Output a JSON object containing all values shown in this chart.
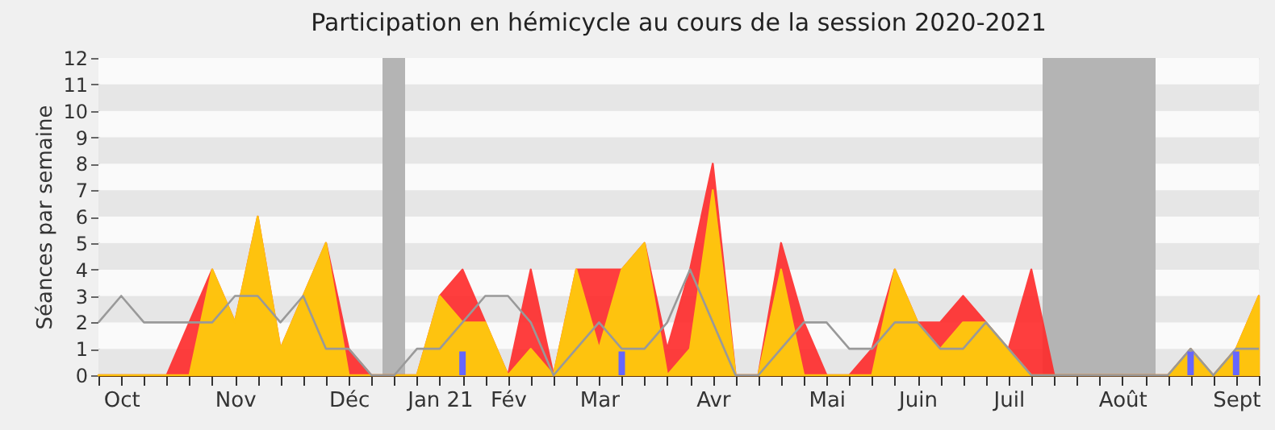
{
  "chart_data": {
    "type": "area",
    "title": "Participation en hémicycle au cours de la session 2020-2021",
    "ylabel": "Séances par semaine",
    "categories": [
      null,
      "Oct",
      null,
      null,
      null,
      null,
      "Nov",
      null,
      null,
      null,
      null,
      "Déc",
      null,
      null,
      null,
      "Jan 21",
      null,
      null,
      "Fév",
      null,
      null,
      null,
      "Mar",
      null,
      null,
      null,
      null,
      "Avr",
      null,
      null,
      null,
      null,
      "Mai",
      null,
      null,
      null,
      "Juin",
      null,
      null,
      null,
      "Juil",
      null,
      null,
      null,
      null,
      "Août",
      null,
      null,
      null,
      null,
      "Sept",
      null
    ],
    "series": [
      {
        "color": "#ff2a2a",
        "values": [
          0,
          0,
          0,
          0,
          2,
          4,
          2,
          6,
          1,
          3,
          5,
          1,
          0,
          0,
          0,
          3,
          4,
          2,
          0,
          4,
          0,
          4,
          4,
          4,
          5,
          1,
          4,
          8,
          0,
          0,
          5,
          2,
          0,
          0,
          1,
          4,
          2,
          2,
          3,
          2,
          1,
          4,
          0,
          0,
          0,
          0,
          0,
          0,
          1,
          0,
          1,
          3
        ]
      },
      {
        "color": "#ffd20a",
        "values": [
          0,
          0,
          0,
          0,
          0,
          4,
          2,
          6,
          1,
          3,
          5,
          0,
          0,
          0,
          0,
          3,
          2,
          2,
          0,
          1,
          0,
          4,
          1,
          4,
          5,
          0,
          1,
          7,
          0,
          0,
          4,
          0,
          0,
          0,
          0,
          4,
          2,
          1,
          2,
          2,
          1,
          0,
          0,
          0,
          0,
          0,
          0,
          0,
          1,
          0,
          1,
          3
        ]
      },
      {
        "type": "line",
        "color": "#999999",
        "values": [
          2,
          3,
          2,
          2,
          2,
          2,
          3,
          3,
          2,
          3,
          1,
          1,
          0,
          0,
          1,
          1,
          2,
          3,
          3,
          2,
          0,
          1,
          2,
          1,
          1,
          2,
          4,
          2,
          0,
          0,
          1,
          2,
          2,
          1,
          1,
          2,
          2,
          1,
          1,
          2,
          1,
          0,
          0,
          0,
          0,
          0,
          0,
          0,
          1,
          0,
          1,
          1
        ]
      },
      {
        "type": "bar",
        "color": "#6666ff",
        "values": [
          null,
          null,
          null,
          null,
          null,
          null,
          null,
          null,
          null,
          null,
          null,
          null,
          null,
          null,
          null,
          null,
          0.9,
          null,
          null,
          null,
          null,
          null,
          null,
          0.9,
          null,
          null,
          null,
          null,
          null,
          null,
          null,
          null,
          null,
          null,
          null,
          null,
          null,
          null,
          null,
          null,
          null,
          null,
          null,
          null,
          null,
          null,
          null,
          null,
          0.9,
          null,
          0.9,
          null
        ]
      }
    ],
    "ylim": [
      0,
      12
    ],
    "yticks": [
      0,
      1,
      2,
      3,
      4,
      5,
      6,
      7,
      8,
      9,
      10,
      11,
      12
    ],
    "grid": true
  }
}
